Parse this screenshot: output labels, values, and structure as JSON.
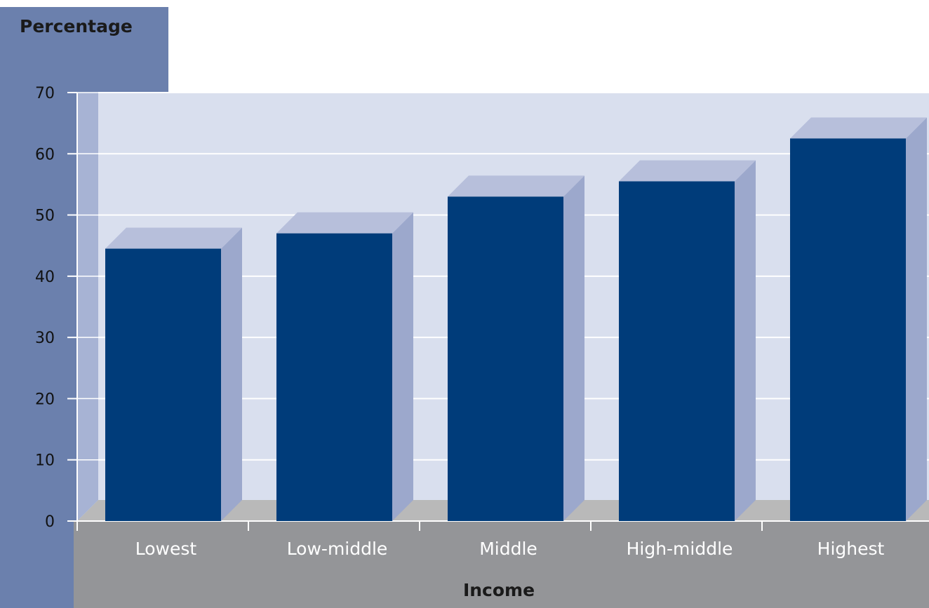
{
  "chart_data": {
    "type": "bar",
    "categories": [
      "Lowest",
      "Low-middle",
      "Middle",
      "High-middle",
      "Highest"
    ],
    "values": [
      44.5,
      47,
      53,
      55.5,
      62.5
    ],
    "ylabel": "Percentage",
    "xlabel": "Income",
    "ylim": [
      0,
      70
    ],
    "yticks": [
      "0",
      "10",
      "20",
      "30",
      "40",
      "50",
      "60",
      "70"
    ],
    "grid": true,
    "three_d": true
  },
  "colors": {
    "bar_front": "#003c7a",
    "bar_side": "#9ca8cc",
    "bar_top": "#b7bfdb",
    "plot_back": "#d9dfee",
    "plot_left_wall": "#a7b3d4",
    "floor": "#b9b9b9",
    "y_panel": "#6b80ad",
    "x_panel": "#949598",
    "gridline": "#ffffff"
  }
}
